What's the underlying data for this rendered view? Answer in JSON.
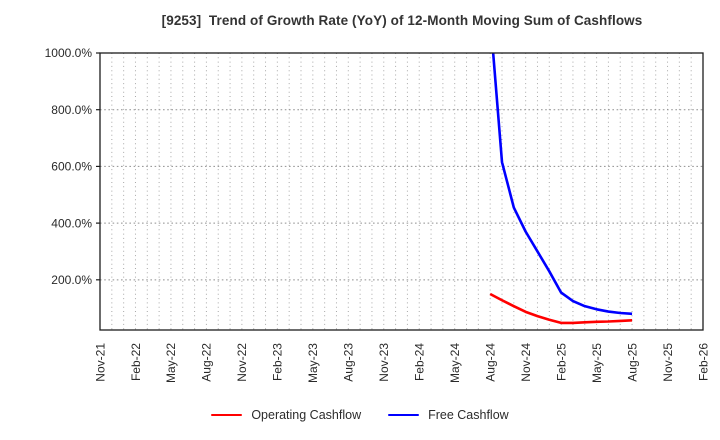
{
  "chart_data": {
    "type": "line",
    "title": "[9253]  Trend of Growth Rate (YoY) of 12-Month Moving Sum of Cashflows",
    "x_axis": {
      "tick_labels": [
        "Nov-21",
        "Feb-22",
        "May-22",
        "Aug-22",
        "Nov-22",
        "Feb-23",
        "May-23",
        "Aug-23",
        "Nov-23",
        "Feb-24",
        "May-24",
        "Aug-24",
        "Nov-24",
        "Feb-25",
        "May-25",
        "Aug-25",
        "Nov-25",
        "Feb-26"
      ],
      "start_month": "Nov-21",
      "end_month": "Feb-26",
      "months_total": 51,
      "minor_grid": "monthly"
    },
    "y_axis": {
      "tick_labels": [
        "200.0%",
        "400.0%",
        "600.0%",
        "800.0%",
        "1000.0%"
      ],
      "tick_values": [
        200,
        400,
        600,
        800,
        1000
      ],
      "ylim": [
        23,
        1000
      ],
      "unit": "percent YoY"
    },
    "grid": true,
    "legend_position": "bottom-center",
    "series": [
      {
        "name": "Operating Cashflow",
        "color": "#ff0000",
        "x": [
          "Aug-24",
          "Sep-24",
          "Oct-24",
          "Nov-24",
          "Dec-24",
          "Jan-25",
          "Feb-25",
          "Mar-25",
          "Apr-25",
          "May-25",
          "Jun-25",
          "Jul-25",
          "Aug-25"
        ],
        "values": [
          150,
          128,
          107,
          87,
          72,
          59,
          48,
          48,
          50,
          52,
          53,
          55,
          57
        ]
      },
      {
        "name": "Free Cashflow",
        "color": "#0000ff",
        "x": [
          "Aug-24",
          "Sep-24",
          "Oct-24",
          "Nov-24",
          "Dec-24",
          "Jan-25",
          "Feb-25",
          "Mar-25",
          "Apr-25",
          "May-25",
          "Jun-25",
          "Jul-25",
          "Aug-25"
        ],
        "values": [
          1130,
          615,
          455,
          370,
          300,
          230,
          155,
          125,
          107,
          96,
          88,
          83,
          80
        ]
      }
    ],
    "colors": {
      "axis": "#1c1c1c",
      "grid_horizontal": "#8f8f8f",
      "grid_vertical": "#a8a8a8",
      "tick_label_text": "#2a2a2a",
      "title_text": "#333333"
    }
  }
}
